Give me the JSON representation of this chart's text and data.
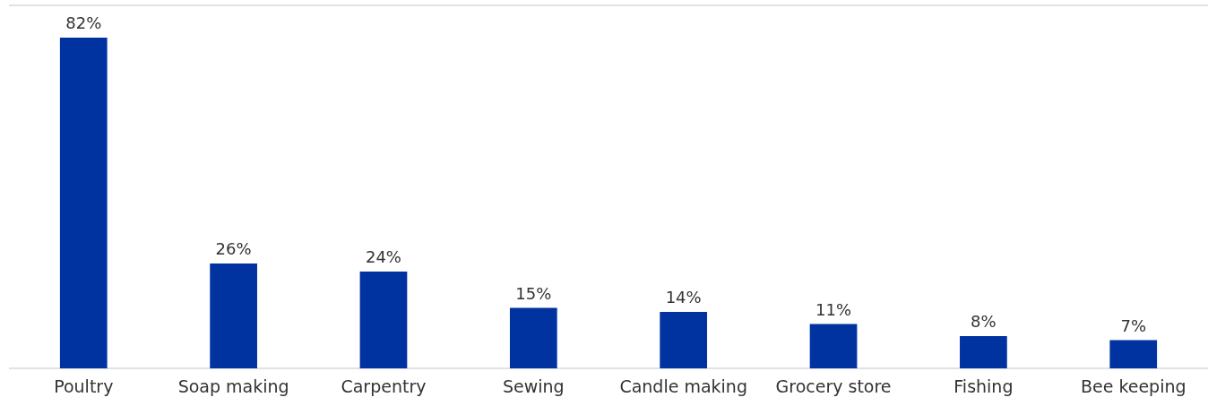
{
  "chart_data": {
    "type": "bar",
    "categories": [
      "Poultry",
      "Soap making",
      "Carpentry",
      "Sewing",
      "Candle making",
      "Grocery store",
      "Fishing",
      "Bee keeping"
    ],
    "values": [
      82,
      26,
      24,
      15,
      14,
      11,
      8,
      7
    ],
    "color": "#0033a0",
    "value_labels": [
      "82%",
      "26%",
      "24%",
      "15%",
      "14%",
      "11%",
      "8%",
      "7%"
    ],
    "ylim": [
      0,
      90
    ],
    "tick_labels": "x"
  }
}
